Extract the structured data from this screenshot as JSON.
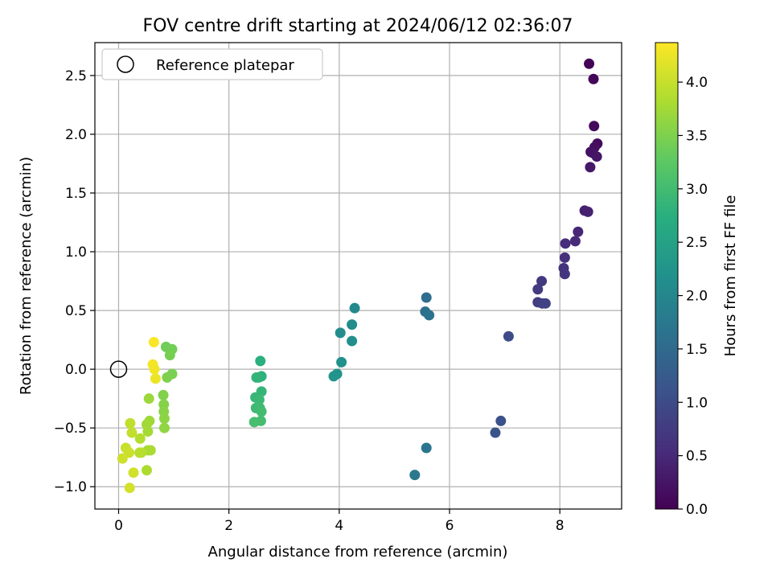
{
  "chart_data": {
    "type": "scatter",
    "title": "FOV centre drift starting at 2024/06/12 02:36:07",
    "xlabel": "Angular distance from reference (arcmin)",
    "ylabel": "Rotation from reference (arcmin)",
    "xlim": [
      -0.43,
      9.12
    ],
    "ylim": [
      -1.19,
      2.78
    ],
    "xticks": [
      0,
      2,
      4,
      6,
      8
    ],
    "yticks": [
      -1.0,
      -0.5,
      0.0,
      0.5,
      1.0,
      1.5,
      2.0,
      2.5
    ],
    "xtick_labels": [
      "0",
      "2",
      "4",
      "6",
      "8"
    ],
    "ytick_labels": [
      "−1.0",
      "−0.5",
      "0.0",
      "0.5",
      "1.0",
      "1.5",
      "2.0",
      "2.5"
    ],
    "grid": true,
    "legend": {
      "position": "top-left",
      "label": "Reference platepar"
    },
    "reference_point": {
      "x": 0,
      "y": 0
    },
    "colorbar": {
      "label": "Hours from first FF file",
      "colormap": "viridis",
      "range": [
        0,
        4.37
      ],
      "ticks": [
        0.0,
        0.5,
        1.0,
        1.5,
        2.0,
        2.5,
        3.0,
        3.5,
        4.0
      ],
      "tick_labels": [
        "0.0",
        "0.5",
        "1.0",
        "1.5",
        "2.0",
        "2.5",
        "3.0",
        "3.5",
        "4.0"
      ]
    },
    "points": [
      {
        "x": 8.53,
        "y": 2.6,
        "h": 0.03
      },
      {
        "x": 8.61,
        "y": 2.47,
        "h": 0.06
      },
      {
        "x": 8.62,
        "y": 2.07,
        "h": 0.1
      },
      {
        "x": 8.68,
        "y": 1.92,
        "h": 0.13
      },
      {
        "x": 8.63,
        "y": 1.89,
        "h": 0.16
      },
      {
        "x": 8.56,
        "y": 1.85,
        "h": 0.19
      },
      {
        "x": 8.6,
        "y": 1.84,
        "h": 0.22
      },
      {
        "x": 8.67,
        "y": 1.81,
        "h": 0.25
      },
      {
        "x": 8.55,
        "y": 1.72,
        "h": 0.28
      },
      {
        "x": 8.45,
        "y": 1.35,
        "h": 0.38
      },
      {
        "x": 8.51,
        "y": 1.34,
        "h": 0.41
      },
      {
        "x": 8.33,
        "y": 1.17,
        "h": 0.48
      },
      {
        "x": 8.1,
        "y": 1.07,
        "h": 0.55
      },
      {
        "x": 8.28,
        "y": 1.09,
        "h": 0.52
      },
      {
        "x": 8.09,
        "y": 0.95,
        "h": 0.6
      },
      {
        "x": 8.07,
        "y": 0.86,
        "h": 0.63
      },
      {
        "x": 8.09,
        "y": 0.81,
        "h": 0.66
      },
      {
        "x": 7.67,
        "y": 0.75,
        "h": 0.72
      },
      {
        "x": 7.6,
        "y": 0.68,
        "h": 0.75
      },
      {
        "x": 7.6,
        "y": 0.57,
        "h": 0.79
      },
      {
        "x": 7.68,
        "y": 0.56,
        "h": 0.82
      },
      {
        "x": 7.74,
        "y": 0.56,
        "h": 0.85
      },
      {
        "x": 7.07,
        "y": 0.28,
        "h": 1.0
      },
      {
        "x": 6.93,
        "y": -0.44,
        "h": 1.08
      },
      {
        "x": 6.83,
        "y": -0.54,
        "h": 1.12
      },
      {
        "x": 5.58,
        "y": 0.61,
        "h": 1.55
      },
      {
        "x": 5.56,
        "y": 0.49,
        "h": 1.6
      },
      {
        "x": 5.63,
        "y": 0.46,
        "h": 1.63
      },
      {
        "x": 5.58,
        "y": -0.67,
        "h": 1.7
      },
      {
        "x": 5.37,
        "y": -0.9,
        "h": 1.75
      },
      {
        "x": 4.28,
        "y": 0.52,
        "h": 2.05
      },
      {
        "x": 4.23,
        "y": 0.38,
        "h": 2.1
      },
      {
        "x": 4.02,
        "y": 0.31,
        "h": 2.12
      },
      {
        "x": 4.23,
        "y": 0.24,
        "h": 2.15
      },
      {
        "x": 4.04,
        "y": 0.06,
        "h": 2.18
      },
      {
        "x": 3.96,
        "y": -0.04,
        "h": 2.22
      },
      {
        "x": 3.9,
        "y": -0.06,
        "h": 2.25
      },
      {
        "x": 2.57,
        "y": 0.07,
        "h": 2.75
      },
      {
        "x": 2.59,
        "y": -0.06,
        "h": 2.8
      },
      {
        "x": 2.54,
        "y": -0.07,
        "h": 2.82
      },
      {
        "x": 2.5,
        "y": -0.07,
        "h": 2.84
      },
      {
        "x": 2.59,
        "y": -0.19,
        "h": 2.87
      },
      {
        "x": 2.48,
        "y": -0.24,
        "h": 2.9
      },
      {
        "x": 2.55,
        "y": -0.26,
        "h": 2.93
      },
      {
        "x": 2.49,
        "y": -0.33,
        "h": 2.95
      },
      {
        "x": 2.56,
        "y": -0.33,
        "h": 2.97
      },
      {
        "x": 2.59,
        "y": -0.36,
        "h": 3.0
      },
      {
        "x": 2.58,
        "y": -0.44,
        "h": 3.02
      },
      {
        "x": 2.46,
        "y": -0.45,
        "h": 3.05
      },
      {
        "x": 0.86,
        "y": 0.19,
        "h": 3.4
      },
      {
        "x": 0.97,
        "y": 0.17,
        "h": 3.42
      },
      {
        "x": 0.93,
        "y": 0.12,
        "h": 3.45
      },
      {
        "x": 0.97,
        "y": -0.04,
        "h": 3.47
      },
      {
        "x": 0.88,
        "y": -0.07,
        "h": 3.5
      },
      {
        "x": 0.81,
        "y": -0.22,
        "h": 3.52
      },
      {
        "x": 0.82,
        "y": -0.3,
        "h": 3.55
      },
      {
        "x": 0.82,
        "y": -0.36,
        "h": 3.57
      },
      {
        "x": 0.83,
        "y": -0.42,
        "h": 3.6
      },
      {
        "x": 0.83,
        "y": -0.5,
        "h": 3.62
      },
      {
        "x": 0.55,
        "y": -0.25,
        "h": 3.7
      },
      {
        "x": 0.56,
        "y": -0.44,
        "h": 3.72
      },
      {
        "x": 0.51,
        "y": -0.47,
        "h": 3.74
      },
      {
        "x": 0.53,
        "y": -0.53,
        "h": 3.76
      },
      {
        "x": 0.53,
        "y": -0.69,
        "h": 3.78
      },
      {
        "x": 0.58,
        "y": -0.69,
        "h": 3.8
      },
      {
        "x": 0.51,
        "y": -0.86,
        "h": 3.82
      },
      {
        "x": 0.39,
        "y": -0.59,
        "h": 3.86
      },
      {
        "x": 0.38,
        "y": -0.71,
        "h": 3.88
      },
      {
        "x": 0.41,
        "y": -0.71,
        "h": 3.9
      },
      {
        "x": 0.21,
        "y": -0.46,
        "h": 3.95
      },
      {
        "x": 0.24,
        "y": -0.54,
        "h": 3.97
      },
      {
        "x": 0.13,
        "y": -0.67,
        "h": 4.0
      },
      {
        "x": 0.19,
        "y": -0.71,
        "h": 4.02
      },
      {
        "x": 0.07,
        "y": -0.76,
        "h": 4.04
      },
      {
        "x": 0.27,
        "y": -0.88,
        "h": 4.06
      },
      {
        "x": 0.2,
        "y": -1.01,
        "h": 4.08
      },
      {
        "x": 0.64,
        "y": 0.23,
        "h": 4.34
      },
      {
        "x": 0.62,
        "y": 0.04,
        "h": 4.31
      },
      {
        "x": 0.65,
        "y": 0.0,
        "h": 4.28
      },
      {
        "x": 0.67,
        "y": -0.08,
        "h": 4.25
      }
    ]
  }
}
